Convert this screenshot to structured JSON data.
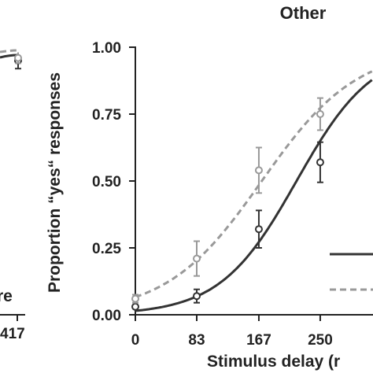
{
  "chart_data": [
    {
      "type": "line",
      "title": "",
      "xlabel": "",
      "ylabel": "",
      "visible_tick_labels": [
        "417"
      ],
      "visible_fragment_text": "re",
      "ylim": [
        0,
        1
      ],
      "series": [
        {
          "name": "",
          "color": "#333333",
          "dash": "solid",
          "points": [
            {
              "y": 0.95,
              "err": 0.03
            }
          ]
        },
        {
          "name": "",
          "color": "#999999",
          "dash": "dashed",
          "points": [
            {
              "y": 0.96,
              "err": 0.02
            }
          ]
        }
      ]
    },
    {
      "type": "line",
      "title": "Other",
      "xlabel": "Stimulus delay (r",
      "ylabel": "Proportion “yes“ responses",
      "xticks": [
        0,
        83,
        167,
        250
      ],
      "xtick_labels": [
        "0",
        "83",
        "167",
        "250"
      ],
      "yticks": [
        0.0,
        0.25,
        0.5,
        0.75,
        1.0
      ],
      "ytick_labels": [
        "0.00",
        "0.25",
        "0.50",
        "0.75",
        "1.00"
      ],
      "xlim": [
        0,
        290
      ],
      "ylim": [
        0,
        1
      ],
      "grid": false,
      "legend": "bottom-right, partially cropped",
      "series": [
        {
          "name": "",
          "color": "#333333",
          "dash": "solid",
          "marker": "open-circle",
          "x": [
            0,
            83,
            167,
            250
          ],
          "y": [
            0.03,
            0.07,
            0.32,
            0.57
          ],
          "err": [
            0.01,
            0.025,
            0.07,
            0.075
          ],
          "fit": {
            "type": "logistic",
            "midpoint": 218,
            "slope": 0.0193
          }
        },
        {
          "name": "",
          "color": "#999999",
          "dash": "dashed",
          "marker": "open-circle",
          "x": [
            0,
            83,
            167,
            250
          ],
          "y": [
            0.06,
            0.21,
            0.54,
            0.75
          ],
          "err": [
            0.015,
            0.065,
            0.085,
            0.06
          ],
          "fit": {
            "type": "logistic",
            "midpoint": 171,
            "slope": 0.0155
          }
        }
      ]
    }
  ]
}
